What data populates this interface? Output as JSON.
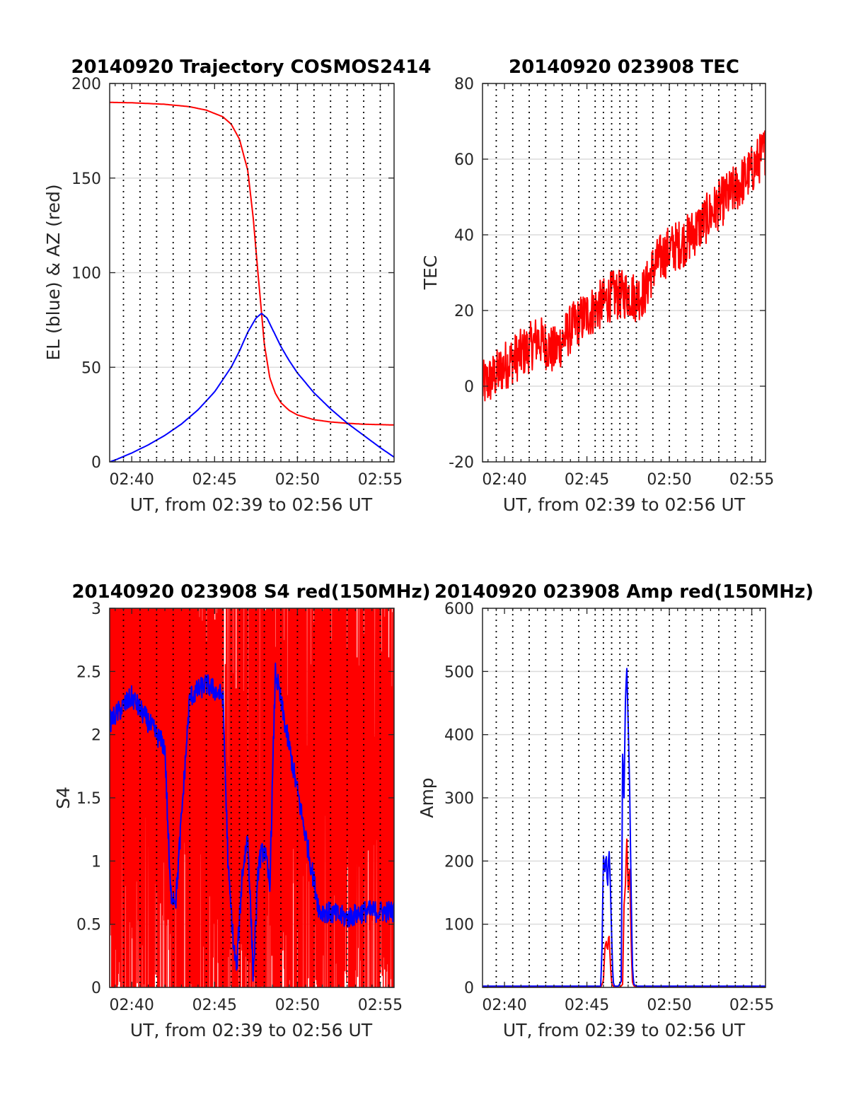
{
  "colors": {
    "red": "#ff0000",
    "blue": "#0000ff",
    "grid": "#dcdcdc",
    "axis": "#262626"
  },
  "marker_times": [
    "02:39:30",
    "02:40:30",
    "02:41:30",
    "02:42:30",
    "02:43:30",
    "02:44:30",
    "02:45:30",
    "02:46:00",
    "02:46:30",
    "02:47:00",
    "02:47:30",
    "02:48:00",
    "02:49:00",
    "02:50:00",
    "02:51:00",
    "02:52:00",
    "02:53:00",
    "02:54:00",
    "02:55:00"
  ],
  "chart_data": [
    {
      "id": "trajectory",
      "type": "line",
      "title": "20140920 Trajectory COSMOS2414",
      "xlabel": "UT, from 02:39 to 02:56 UT",
      "ylabel": "EL (blue) & AZ (red)",
      "xlim": [
        "02:38:40",
        "02:55:50"
      ],
      "ylim": [
        0,
        200
      ],
      "xticks": [
        "02:40",
        "02:45",
        "02:50",
        "02:55"
      ],
      "yticks": [
        0,
        50,
        100,
        150,
        200
      ],
      "grid": "horizontal",
      "series": [
        {
          "color": "red",
          "kind": "curve",
          "x": [
            "02:38:40",
            "02:40:00",
            "02:42:00",
            "02:43:30",
            "02:44:30",
            "02:45:30",
            "02:46:00",
            "02:46:30",
            "02:47:00",
            "02:47:20",
            "02:47:40",
            "02:48:00",
            "02:48:20",
            "02:48:40",
            "02:49:00",
            "02:49:30",
            "02:50:00",
            "02:51:00",
            "02:52:00",
            "02:53:00",
            "02:54:00",
            "02:55:50"
          ],
          "y": [
            190,
            189.8,
            189,
            187.7,
            185.9,
            182.4,
            178.5,
            170.6,
            154.1,
            128.8,
            95,
            62.2,
            44.4,
            36.2,
            31.3,
            27.2,
            24.8,
            22.3,
            21.1,
            20.4,
            19.9,
            19.5
          ]
        },
        {
          "color": "blue",
          "kind": "curve",
          "x": [
            "02:38:40",
            "02:39:00",
            "02:40:00",
            "02:41:00",
            "02:42:00",
            "02:43:00",
            "02:44:00",
            "02:45:00",
            "02:46:00",
            "02:46:30",
            "02:47:00",
            "02:47:30",
            "02:47:50",
            "02:48:10",
            "02:48:30",
            "02:49:00",
            "02:49:30",
            "02:50:00",
            "02:51:00",
            "02:52:00",
            "02:53:00",
            "02:54:00",
            "02:55:00",
            "02:55:50"
          ],
          "y": [
            0,
            1,
            4.7,
            9,
            14,
            20,
            27.5,
            37,
            50,
            58.5,
            68.5,
            76,
            78.5,
            76,
            70,
            61,
            53.5,
            47,
            36.5,
            28,
            20.5,
            14,
            7.5,
            2.5
          ]
        }
      ]
    },
    {
      "id": "tec",
      "type": "line",
      "title": "20140920 023908 TEC",
      "xlabel": "UT, from 02:39 to 02:56 UT",
      "ylabel": "TEC",
      "xlim": [
        "02:38:40",
        "02:55:50"
      ],
      "ylim": [
        -20,
        80
      ],
      "xticks": [
        "02:40",
        "02:45",
        "02:50",
        "02:55"
      ],
      "yticks": [
        -20,
        0,
        20,
        40,
        60,
        80
      ],
      "grid": "horizontal",
      "series": [
        {
          "color": "red",
          "kind": "noisy",
          "noise": 0.8,
          "x": [
            "02:38:40",
            "02:39:30",
            "02:40:00",
            "02:40:30",
            "02:41:00",
            "02:41:30",
            "02:42:00",
            "02:42:30",
            "02:43:00",
            "02:44:00",
            "02:45:00",
            "02:46:00",
            "02:46:30",
            "02:47:00",
            "02:47:30",
            "02:48:00",
            "02:48:30",
            "02:49:00",
            "02:49:30",
            "02:50:00",
            "02:51:00",
            "02:52:00",
            "02:53:00",
            "02:54:00",
            "02:55:00",
            "02:55:50"
          ],
          "y": [
            0,
            3,
            5.5,
            7,
            8.5,
            10,
            12.5,
            11,
            9,
            15,
            19,
            22,
            24,
            24,
            24.5,
            23.5,
            25,
            31,
            34,
            36,
            38.5,
            43,
            48,
            52,
            57,
            62.5
          ]
        }
      ]
    },
    {
      "id": "s4",
      "type": "line",
      "title": "20140920 023908 S4 red(150MHz)",
      "xlabel": "UT, from 02:39 to 02:56 UT",
      "ylabel": "S4",
      "xlim": [
        "02:38:40",
        "02:55:50"
      ],
      "ylim": [
        0,
        3
      ],
      "xticks": [
        "02:40",
        "02:45",
        "02:50",
        "02:55"
      ],
      "yticks": [
        0,
        0.5,
        1,
        1.5,
        2,
        2.5,
        3
      ],
      "grid": "horizontal",
      "series": [
        {
          "color": "red",
          "kind": "spiky",
          "x": [
            "02:38:40",
            "02:40:00",
            "02:41:00",
            "02:42:00",
            "02:42:30",
            "02:43:30",
            "02:44:30",
            "02:45:30",
            "02:46:00",
            "02:46:30",
            "02:47:00",
            "02:47:30",
            "02:48:00",
            "02:48:30",
            "02:49:00",
            "02:50:00",
            "02:51:00",
            "02:52:00",
            "02:53:00",
            "02:54:00",
            "02:55:00",
            "02:55:50"
          ],
          "y": [
            1.8,
            1.9,
            1.8,
            1.6,
            0.8,
            1.5,
            1.8,
            1.6,
            0.7,
            0.6,
            0.8,
            0.5,
            1.2,
            1.5,
            1.5,
            1.5,
            1.5,
            1.5,
            1.5,
            1.5,
            1.5,
            1.5
          ]
        },
        {
          "color": "blue",
          "kind": "noisy",
          "noise": 0.35,
          "x": [
            "02:38:40",
            "02:40:00",
            "02:41:00",
            "02:42:00",
            "02:42:20",
            "02:42:40",
            "02:43:30",
            "02:44:30",
            "02:45:30",
            "02:45:50",
            "02:46:10",
            "02:46:20",
            "02:46:40",
            "02:47:00",
            "02:47:20",
            "02:47:40",
            "02:48:00",
            "02:48:20",
            "02:48:40",
            "02:51:20",
            "02:51:40",
            "02:53:00",
            "02:54:00",
            "02:55:00",
            "02:55:50"
          ],
          "y": [
            2.1,
            2.3,
            2.1,
            1.9,
            0.75,
            0.7,
            2.3,
            2.4,
            2.3,
            0.9,
            0.3,
            0.15,
            0.9,
            1.2,
            0.1,
            1.0,
            1.1,
            0.8,
            2.5,
            0.6,
            0.6,
            0.55,
            0.6,
            0.6,
            0.6
          ]
        }
      ]
    },
    {
      "id": "amp",
      "type": "line",
      "title": "20140920 023908 Amp red(150MHz)",
      "xlabel": "UT, from 02:39 to 02:56 UT",
      "ylabel": "Amp",
      "xlim": [
        "02:38:40",
        "02:55:50"
      ],
      "ylim": [
        0,
        600
      ],
      "xticks": [
        "02:40",
        "02:45",
        "02:50",
        "02:55"
      ],
      "yticks": [
        0,
        100,
        200,
        300,
        400,
        500,
        600
      ],
      "grid": "horizontal",
      "series": [
        {
          "color": "red",
          "kind": "curve",
          "x": [
            "02:38:40",
            "02:45:50",
            "02:46:00",
            "02:46:05",
            "02:46:10",
            "02:46:15",
            "02:46:20",
            "02:46:25",
            "02:46:30",
            "02:46:40",
            "02:47:00",
            "02:47:10",
            "02:47:15",
            "02:47:20",
            "02:47:25",
            "02:47:30",
            "02:47:35",
            "02:47:40",
            "02:47:45",
            "02:47:50",
            "02:48:00",
            "02:55:50"
          ],
          "y": [
            0,
            0,
            10,
            60,
            75,
            55,
            90,
            40,
            5,
            0,
            0,
            5,
            130,
            160,
            240,
            150,
            200,
            90,
            10,
            3,
            0,
            0
          ]
        },
        {
          "color": "blue",
          "kind": "curve",
          "x": [
            "02:38:40",
            "02:45:50",
            "02:45:55",
            "02:46:00",
            "02:46:05",
            "02:46:10",
            "02:46:15",
            "02:46:20",
            "02:46:25",
            "02:46:30",
            "02:46:35",
            "02:46:40",
            "02:46:55",
            "02:47:05",
            "02:47:10",
            "02:47:15",
            "02:47:20",
            "02:47:25",
            "02:47:30",
            "02:47:35",
            "02:47:40",
            "02:47:45",
            "02:47:50",
            "02:48:00",
            "02:55:50"
          ],
          "y": [
            2,
            2,
            60,
            210,
            180,
            215,
            150,
            225,
            170,
            80,
            10,
            2,
            2,
            10,
            380,
            300,
            450,
            510,
            420,
            330,
            180,
            40,
            5,
            2,
            2
          ]
        }
      ]
    }
  ]
}
